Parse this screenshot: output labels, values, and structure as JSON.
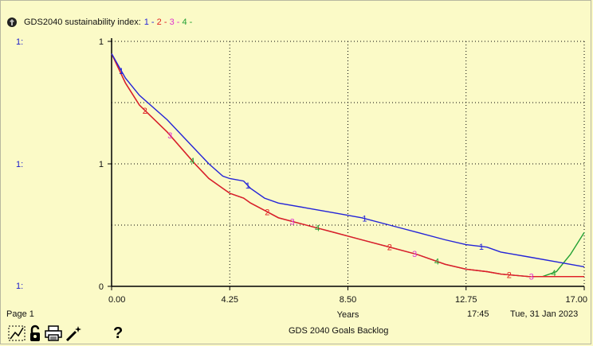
{
  "chart_data": {
    "type": "line",
    "title": "GDS2040 sustainability index:",
    "xlabel": "Years",
    "x_ticks": [
      "0.00",
      "4.25",
      "8.50",
      "12.75",
      "17.00"
    ],
    "y_ticks_left": [
      "1",
      "1",
      "0"
    ],
    "xlim": [
      0,
      17
    ],
    "ylim": [
      0,
      1
    ],
    "grid": true,
    "legend_placement": "top-left",
    "axis_markers": [
      "1:",
      "1:",
      "1:"
    ],
    "series": [
      {
        "name": "1",
        "color": "#2424d8",
        "x": [
          0,
          0.5,
          1,
          2,
          3,
          3.5,
          4,
          4.25,
          4.75,
          5,
          5.5,
          6,
          7,
          8,
          9,
          10,
          11,
          12,
          12.75,
          13.5,
          14,
          15,
          16,
          17
        ],
        "y": [
          0.95,
          0.85,
          0.78,
          0.68,
          0.56,
          0.5,
          0.45,
          0.44,
          0.43,
          0.4,
          0.36,
          0.34,
          0.32,
          0.3,
          0.28,
          0.25,
          0.22,
          0.19,
          0.17,
          0.16,
          0.14,
          0.12,
          0.1,
          0.08
        ]
      },
      {
        "name": "2",
        "color": "#e02020",
        "x": [
          0,
          0.5,
          1,
          2,
          3,
          3.5,
          4,
          4.25,
          4.75,
          5,
          5.5,
          6,
          7,
          8,
          9,
          10,
          11,
          12,
          12.75,
          13.5,
          14,
          15,
          16,
          17
        ],
        "y": [
          0.95,
          0.83,
          0.74,
          0.63,
          0.5,
          0.44,
          0.4,
          0.38,
          0.36,
          0.34,
          0.31,
          0.28,
          0.25,
          0.22,
          0.19,
          0.16,
          0.13,
          0.09,
          0.07,
          0.06,
          0.05,
          0.04,
          0.04,
          0.04
        ]
      },
      {
        "name": "3",
        "color": "#e030d0",
        "x": [
          0,
          0.5,
          1,
          2,
          3,
          3.5,
          4,
          4.25,
          4.75,
          5,
          5.5,
          6,
          7,
          8,
          9,
          10,
          11,
          12,
          12.75,
          13.5,
          14,
          15,
          16,
          17
        ],
        "y": [
          0.95,
          0.83,
          0.74,
          0.63,
          0.5,
          0.44,
          0.4,
          0.38,
          0.36,
          0.34,
          0.31,
          0.28,
          0.25,
          0.22,
          0.19,
          0.16,
          0.13,
          0.09,
          0.07,
          0.06,
          0.05,
          0.04,
          0.04,
          0.04
        ]
      },
      {
        "name": "4",
        "color": "#22a033",
        "x": [
          0,
          0.5,
          1,
          2,
          3,
          3.5,
          4,
          4.25,
          4.75,
          5,
          5.5,
          6,
          7,
          8,
          9,
          10,
          11,
          12,
          12.75,
          13.5,
          14,
          15,
          15.5,
          16,
          16.5,
          17
        ],
        "y": [
          0.95,
          0.83,
          0.74,
          0.63,
          0.5,
          0.44,
          0.4,
          0.38,
          0.36,
          0.34,
          0.31,
          0.28,
          0.25,
          0.22,
          0.19,
          0.16,
          0.13,
          0.09,
          0.07,
          0.06,
          0.05,
          0.04,
          0.04,
          0.06,
          0.13,
          0.22
        ]
      }
    ],
    "line_labels": [
      {
        "series": 0,
        "x": 0.35
      },
      {
        "series": 0,
        "x": 4.9
      },
      {
        "series": 0,
        "x": 9.1
      },
      {
        "series": 0,
        "x": 13.3
      },
      {
        "series": 1,
        "x": 1.2
      },
      {
        "series": 1,
        "x": 5.6
      },
      {
        "series": 1,
        "x": 10.0
      },
      {
        "series": 1,
        "x": 14.3
      },
      {
        "series": 2,
        "x": 2.1
      },
      {
        "series": 2,
        "x": 6.5
      },
      {
        "series": 2,
        "x": 10.9
      },
      {
        "series": 2,
        "x": 15.1
      },
      {
        "series": 3,
        "x": 2.9
      },
      {
        "series": 3,
        "x": 7.4
      },
      {
        "series": 3,
        "x": 11.7
      },
      {
        "series": 3,
        "x": 15.9
      }
    ]
  },
  "footer": {
    "page": "Page 1",
    "time": "17:45",
    "date": "Tue, 31 Jan 2023",
    "model_title": "GDS 2040 Goals Backlog"
  },
  "toolbar": {
    "help": "?",
    "icons": [
      "graph-type-icon",
      "lock-icon",
      "print-icon",
      "magic-wand-icon"
    ]
  }
}
